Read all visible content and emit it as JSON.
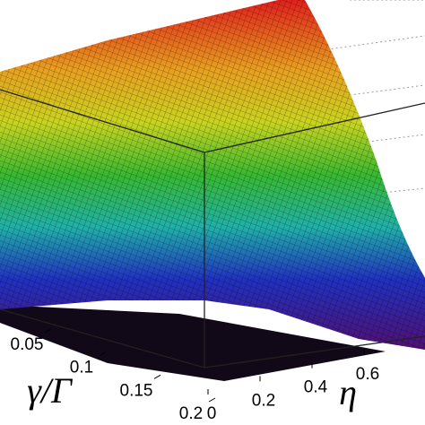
{
  "chart_data": {
    "type": "surface",
    "xlabel": "γ/Γ",
    "ylabel": "η",
    "xticks": [
      0.05,
      0.1,
      0.15,
      0.2
    ],
    "yticks": [
      0,
      0.2,
      0.4,
      0.6
    ],
    "colormap": "hsv"
  }
}
